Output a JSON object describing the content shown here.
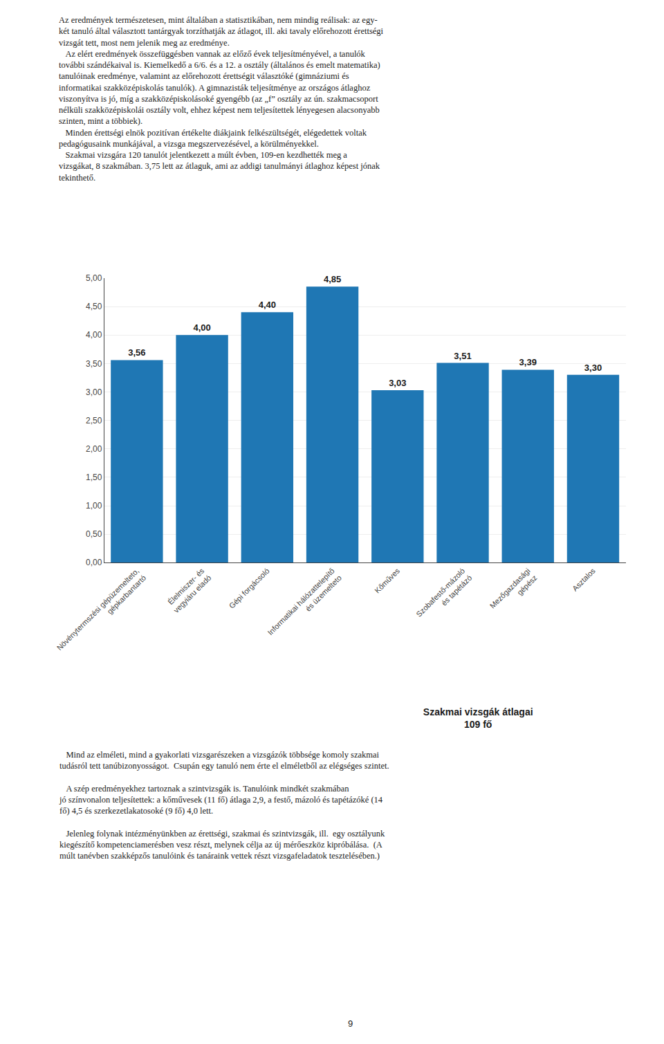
{
  "chart_data": {
    "type": "bar",
    "title": "Szakmai vizsgák átlagai\n109 fő",
    "categories": [
      "Növénytermszési gépüzemelteto,\ngépkarbantartó",
      "Élelmiszer- és\nvegyiáru eladó",
      "Gépi forgácsoló",
      "Informatikai hálózattelepítő\nés üzemelteto",
      "Kőműves",
      "Szobafestő-mázoló\nés tapétázó",
      "Mezőgazdasági\ngépész",
      "Asztalos"
    ],
    "values": [
      3.56,
      4.0,
      4.4,
      4.85,
      3.03,
      3.51,
      3.39,
      3.3
    ],
    "value_labels": [
      "3,56",
      "4,00",
      "4,40",
      "4,85",
      "3,03",
      "3,51",
      "3,39",
      "3,30"
    ],
    "data_labels": true,
    "ylim": [
      0,
      5.0
    ],
    "yticks": [
      {
        "value": 0.0,
        "label": "0,00"
      },
      {
        "value": 0.5,
        "label": "0,50"
      },
      {
        "value": 1.0,
        "label": "1,00"
      },
      {
        "value": 1.5,
        "label": "1,50"
      },
      {
        "value": 2.0,
        "label": "2,00"
      },
      {
        "value": 2.5,
        "label": "2,50"
      },
      {
        "value": 3.0,
        "label": "3,00"
      },
      {
        "value": 3.5,
        "label": "3,50"
      },
      {
        "value": 4.0,
        "label": "4,00"
      },
      {
        "value": 4.5,
        "label": "4,50"
      },
      {
        "value": 5.0,
        "label": "5,00"
      }
    ],
    "grid": true,
    "annotations": [
      "Az eredmények természetesen, mint általában a statisztikában, nem mindig reálisak: az egy-\nkét tanuló által választott tantárgyak torzíthatják az átlagot, ill. aki tavaly előrehozott érettségi\nvizsgát tett, most nem jelenik meg az eredménye.\n   Az elért eredmények összefüggésben vannak az előző évek teljesítményével, a tanulók\ntovábbi szándékaival is. Kiemelkedő a 6/6. és a 12. a osztály (általános és emelt matematika)\ntanulóinak eredménye, valamint az előrehozott érettségit választóké (gimnáziumi és\ninformatikai szakközépiskolás tanulók). A gimnazisták teljesítménye az országos átlaghoz\nviszonyítva is jó, míg a szakközépiskolásoké gyengébb (az „f” osztály az ún. szakmacsoport\nnélküli szakközépiskolái osztály volt, ehhez képest nem teljesítettek lényegesen alacsonyabb\nszinten, mint a többiek).\n   Minden érettségi elnök pozitívan értékelte diákjaink felkészültségét, elégedettek voltak\npedagógusaink munkájával, a vizsga megszervezésével, a körülményekkel.\n   Szakmai vizsgára 120 tanulót jelentkezett a múlt évben, 109-en kezdhették meg a\nvizsgákat, 8 szakmában. 3,75 lett az átlaguk, ami az addigi tanulmányi átlaghoz képest jónak\ntekinthető.",
      "   Mind az elméleti, mind a gyakorlati vizsgarészeken a vizsgázók többsége komoly szakmai\ntudásról tett tanúbizonyosságot.  Csupán egy tanuló nem érte el elméletből az elégséges szintet.\n\n   A szép eredményekhez tartoznak a szintvizsgák is. Tanulóink mindkét szakmában\njó színvonalon teljesítettek: a kőművesek (11 fő) átlaga 2,9, a festő, mázoló és tapétázóké (14\nfő) 4,5 és szerkezetlakatosoké (9 fő) 4,0 lett.\n\n   Jelenleg folynak intézményünkben az érettségi, szakmai és szintvizsgák, ill.  egy osztályunk\nkiegészítő kompetenciamerésben vesz részt, melynek célja az új mérőeszköz kipróbálása.  (A\nmúlt tanévben szakképzős tanulóink és tanáraink vettek részt vizsgafeladatok tesztelésében.)",
      "9"
    ]
  }
}
